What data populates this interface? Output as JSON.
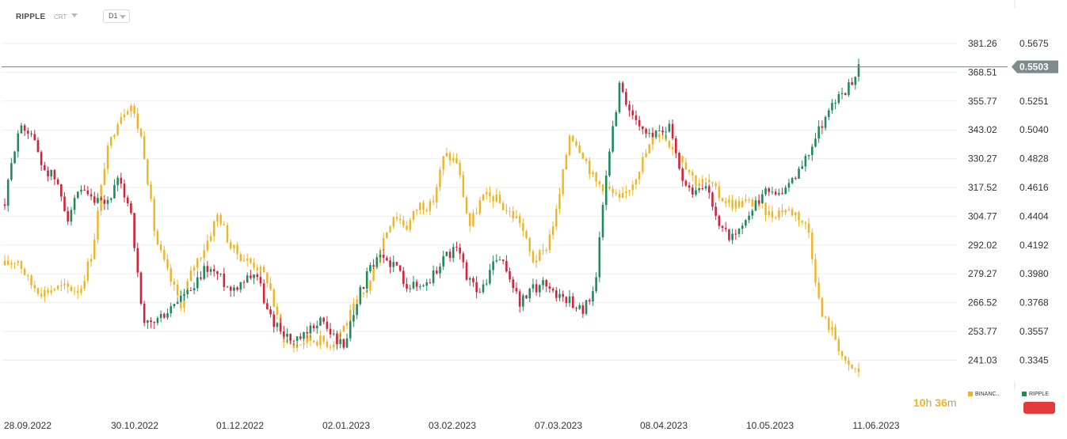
{
  "header": {
    "symbol": "RIPPLE",
    "sub": "CRT",
    "timeframe": "D1"
  },
  "axis_left": {
    "labels": [
      "381.26",
      "368.51",
      "355.77",
      "343.02",
      "330.27",
      "317.52",
      "304.77",
      "292.02",
      "279.27",
      "266.52",
      "253.77",
      "241.03"
    ]
  },
  "axis_right": {
    "labels": [
      "0.5675",
      "",
      "0.5251",
      "0.5040",
      "0.4828",
      "0.4616",
      "0.4404",
      "0.4192",
      "0.3980",
      "0.3768",
      "0.3557",
      "0.3345"
    ]
  },
  "last_price": "0.5503",
  "x_labels": [
    "28.09.2022",
    "30.10.2022",
    "01.12.2022",
    "02.01.2023",
    "03.02.2023",
    "07.03.2023",
    "08.04.2023",
    "10.05.2023",
    "11.06.2023"
  ],
  "timer": {
    "hours": "10",
    "h": "h",
    "minutes": "36",
    "m": "m"
  },
  "legend": {
    "binance": "BINANC..",
    "ripple": "RIPPLE"
  },
  "colors": {
    "up": "#1f8a5b",
    "down": "#d0243c",
    "binance": "#f0b323",
    "grid": "#eeeeee",
    "priceLine": "#7d8a8e"
  },
  "chart_data": {
    "type": "candlestick",
    "title": "",
    "x": [
      "28.09.2022",
      "30.10.2022",
      "01.12.2022",
      "02.01.2023",
      "03.02.2023",
      "07.03.2023",
      "08.04.2023",
      "10.05.2023",
      "11.06.2023"
    ],
    "series": [
      {
        "name": "RIPPLE",
        "axis": "right",
        "ylim": [
          0.3345,
          0.5675
        ],
        "close_path": [
          0.449,
          0.503,
          0.505,
          0.477,
          0.468,
          0.44,
          0.458,
          0.451,
          0.448,
          0.465,
          0.448,
          0.359,
          0.363,
          0.37,
          0.381,
          0.385,
          0.403,
          0.397,
          0.386,
          0.394,
          0.4,
          0.367,
          0.357,
          0.347,
          0.352,
          0.365,
          0.354,
          0.344,
          0.378,
          0.4,
          0.41,
          0.405,
          0.391,
          0.388,
          0.395,
          0.411,
          0.416,
          0.392,
          0.384,
          0.409,
          0.401,
          0.376,
          0.386,
          0.392,
          0.382,
          0.379,
          0.37,
          0.389,
          0.48,
          0.539,
          0.511,
          0.5,
          0.503,
          0.508,
          0.466,
          0.457,
          0.462,
          0.431,
          0.424,
          0.434,
          0.452,
          0.461,
          0.456,
          0.47,
          0.487,
          0.508,
          0.524,
          0.533,
          0.55
        ]
      },
      {
        "name": "BINANC..",
        "axis": "left",
        "ylim": [
          241.03,
          381.26
        ],
        "close_path": [
          283,
          286,
          275,
          271,
          273,
          273,
          272,
          290,
          330,
          348,
          355,
          337,
          295,
          279,
          266,
          282,
          292,
          306,
          291,
          286,
          283,
          276,
          252,
          247,
          250,
          250,
          248,
          256,
          266,
          274,
          293,
          306,
          300,
          310,
          309,
          332,
          329,
          300,
          313,
          313,
          307,
          303,
          285,
          289,
          308,
          342,
          333,
          320,
          317,
          311,
          320,
          332,
          343,
          337,
          330,
          320,
          320,
          313,
          310,
          311,
          310,
          305,
          308,
          306,
          299,
          261,
          253,
          238,
          236
        ]
      }
    ]
  }
}
